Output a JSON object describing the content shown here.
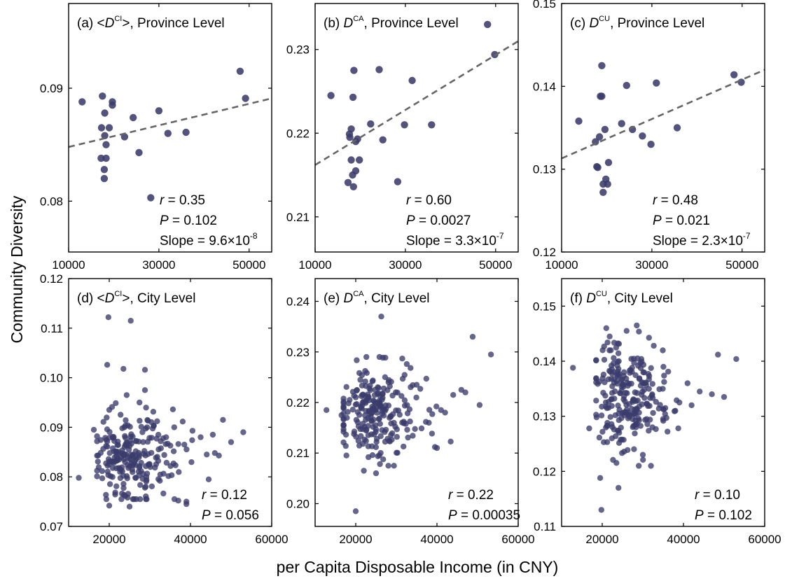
{
  "figure": {
    "ylabel": "Community Diversity",
    "xlabel": "per Capita Disposable Income (in CNY)"
  },
  "colors": {
    "point": "#3b3b6b",
    "fit": "#666666",
    "axis": "#000000"
  },
  "chart_data": [
    {
      "type": "scatter",
      "panel": "a",
      "title_prefix": "(a) <",
      "title_var": "D",
      "title_sup": "CI",
      "title_suffix": ">, Province Level",
      "xlim": [
        10000,
        55000
      ],
      "ylim": [
        0.0755,
        0.0975
      ],
      "xticks": [
        10000,
        30000,
        50000
      ],
      "xtick_labels": [
        "10000",
        "30000",
        "50000"
      ],
      "yticks": [
        0.08,
        0.09
      ],
      "ytick_labels": [
        "0.08",
        "0.09"
      ],
      "points": [
        [
          13000,
          0.0888
        ],
        [
          17500,
          0.0893
        ],
        [
          18000,
          0.0878
        ],
        [
          17300,
          0.0865
        ],
        [
          18000,
          0.0858
        ],
        [
          18300,
          0.085
        ],
        [
          19000,
          0.0865
        ],
        [
          19700,
          0.0888
        ],
        [
          19700,
          0.0885
        ],
        [
          22400,
          0.0857
        ],
        [
          24300,
          0.0874
        ],
        [
          25600,
          0.0843
        ],
        [
          17200,
          0.0838
        ],
        [
          17900,
          0.0828
        ],
        [
          17900,
          0.082
        ],
        [
          18300,
          0.0838
        ],
        [
          28200,
          0.0803
        ],
        [
          30000,
          0.088
        ],
        [
          32000,
          0.086
        ],
        [
          36000,
          0.0861
        ],
        [
          48000,
          0.0915
        ],
        [
          49200,
          0.0891
        ]
      ],
      "fit": [
        [
          10000,
          0.0848
        ],
        [
          55000,
          0.0891
        ]
      ],
      "stats": [
        {
          "label": "r",
          "value": " = 0.35"
        },
        {
          "label": "P",
          "value": " = 0.102"
        },
        {
          "label": "",
          "value": "Slope = 9.6×10",
          "sup": "-8"
        }
      ]
    },
    {
      "type": "scatter",
      "panel": "b",
      "title_prefix": "(b)  ",
      "title_var": "D",
      "title_sup": "CA",
      "title_suffix": ", Province Level",
      "xlim": [
        10000,
        55000
      ],
      "ylim": [
        0.2058,
        0.2355
      ],
      "xticks": [
        10000,
        30000,
        50000
      ],
      "xtick_labels": [
        "10000",
        "30000",
        "50000"
      ],
      "yticks": [
        0.21,
        0.22,
        0.23
      ],
      "ytick_labels": [
        "0.21",
        "0.22",
        "0.23"
      ],
      "points": [
        [
          13500,
          0.2245
        ],
        [
          17600,
          0.2199
        ],
        [
          17700,
          0.2195
        ],
        [
          18000,
          0.2205
        ],
        [
          18400,
          0.2243
        ],
        [
          18600,
          0.2275
        ],
        [
          19000,
          0.219
        ],
        [
          19400,
          0.2193
        ],
        [
          18000,
          0.2168
        ],
        [
          19000,
          0.2155
        ],
        [
          19800,
          0.2168
        ],
        [
          17300,
          0.2141
        ],
        [
          18300,
          0.215
        ],
        [
          18500,
          0.2136
        ],
        [
          22300,
          0.2211
        ],
        [
          24200,
          0.2276
        ],
        [
          25000,
          0.2192
        ],
        [
          28300,
          0.2142
        ],
        [
          29800,
          0.221
        ],
        [
          31500,
          0.2263
        ],
        [
          35800,
          0.221
        ],
        [
          48200,
          0.233
        ],
        [
          49800,
          0.2294
        ]
      ],
      "fit": [
        [
          10000,
          0.2162
        ],
        [
          55000,
          0.231
        ]
      ],
      "stats": [
        {
          "label": "r",
          "value": " = 0.60"
        },
        {
          "label": "P",
          "value": " = 0.0027"
        },
        {
          "label": "",
          "value": "Slope = 3.3×10",
          "sup": "-7"
        }
      ]
    },
    {
      "type": "scatter",
      "panel": "c",
      "title_prefix": "(c)  ",
      "title_var": "D",
      "title_sup": "CU",
      "title_suffix": ", Province Level",
      "xlim": [
        10000,
        55000
      ],
      "ylim": [
        0.12,
        0.15
      ],
      "xticks": [
        10000,
        30000,
        50000
      ],
      "xtick_labels": [
        "10000",
        "30000",
        "50000"
      ],
      "yticks": [
        0.12,
        0.13,
        0.14,
        0.15
      ],
      "ytick_labels": [
        "0.12",
        "0.13",
        "0.14",
        "0.15"
      ],
      "points": [
        [
          13800,
          0.1358
        ],
        [
          17500,
          0.1333
        ],
        [
          17800,
          0.1303
        ],
        [
          18000,
          0.1302
        ],
        [
          18400,
          0.1339
        ],
        [
          18600,
          0.1388
        ],
        [
          18900,
          0.1425
        ],
        [
          18900,
          0.1388
        ],
        [
          19200,
          0.1272
        ],
        [
          19200,
          0.1282
        ],
        [
          19600,
          0.1348
        ],
        [
          19800,
          0.1288
        ],
        [
          20200,
          0.1282
        ],
        [
          20400,
          0.1308
        ],
        [
          23300,
          0.1355
        ],
        [
          24400,
          0.1401
        ],
        [
          25700,
          0.1348
        ],
        [
          27900,
          0.134
        ],
        [
          29800,
          0.133
        ],
        [
          31000,
          0.1404
        ],
        [
          35600,
          0.135
        ],
        [
          48200,
          0.1414
        ],
        [
          49800,
          0.1405
        ]
      ],
      "fit": [
        [
          10000,
          0.1313
        ],
        [
          55000,
          0.142
        ]
      ],
      "stats": [
        {
          "label": "r",
          "value": " = 0.48"
        },
        {
          "label": "P",
          "value": " = 0.021"
        },
        {
          "label": "",
          "value": "Slope = 2.3×10",
          "sup": "-7"
        }
      ]
    },
    {
      "type": "scatter",
      "panel": "d",
      "title_prefix": "(d) <",
      "title_var": "D",
      "title_sup": "CI",
      "title_suffix": ">, City Level",
      "xlim": [
        10000,
        60000
      ],
      "ylim": [
        0.07,
        0.12
      ],
      "xticks": [
        20000,
        40000,
        60000
      ],
      "xtick_labels": [
        "20000",
        "40000",
        "60000"
      ],
      "yticks": [
        0.07,
        0.08,
        0.09,
        0.1,
        0.11,
        0.12
      ],
      "ytick_labels": [
        "0.07",
        "0.08",
        "0.09",
        "0.10",
        "0.11",
        "0.12"
      ],
      "outliers": [
        [
          12500,
          0.0798
        ],
        [
          19800,
          0.1122
        ],
        [
          25300,
          0.1115
        ],
        [
          19500,
          0.1026
        ],
        [
          23500,
          0.1018
        ],
        [
          28800,
          0.1016
        ],
        [
          28800,
          0.0975
        ],
        [
          24300,
          0.0965
        ],
        [
          16200,
          0.0895
        ],
        [
          20000,
          0.0935
        ],
        [
          37000,
          0.0752
        ],
        [
          39000,
          0.075
        ],
        [
          39000,
          0.0745
        ],
        [
          40500,
          0.0893
        ],
        [
          42500,
          0.088
        ],
        [
          45500,
          0.0885
        ],
        [
          48000,
          0.0915
        ],
        [
          50000,
          0.087
        ],
        [
          53000,
          0.089
        ],
        [
          44000,
          0.0845
        ],
        [
          46000,
          0.0848
        ],
        [
          47000,
          0.0843
        ],
        [
          20000,
          0.0742
        ],
        [
          25000,
          0.074
        ],
        [
          24500,
          0.0758
        ],
        [
          36000,
          0.09
        ],
        [
          34000,
          0.088
        ],
        [
          38500,
          0.0865
        ]
      ],
      "cluster": {
        "n": 230,
        "center": [
          25000,
          0.0842
        ],
        "spread": [
          4500,
          0.0045
        ],
        "skew": 0.9,
        "xrange": [
          17000,
          46000
        ],
        "yrange": [
          0.0755,
          0.095
        ],
        "seed": 11
      },
      "stats": [
        {
          "label": "r",
          "value": " = 0.12"
        },
        {
          "label": "P",
          "value": " = 0.056"
        }
      ]
    },
    {
      "type": "scatter",
      "panel": "e",
      "title_prefix": "(e)  ",
      "title_var": "D",
      "title_sup": "CA",
      "title_suffix": ", City Level",
      "xlim": [
        10000,
        60000
      ],
      "ylim": [
        0.1955,
        0.2445
      ],
      "xticks": [
        20000,
        40000,
        60000
      ],
      "xtick_labels": [
        "20000",
        "40000",
        "60000"
      ],
      "yticks": [
        0.2,
        0.21,
        0.22,
        0.23,
        0.24
      ],
      "ytick_labels": [
        "0.20",
        "0.21",
        "0.22",
        "0.23",
        "0.24"
      ],
      "outliers": [
        [
          12800,
          0.2185
        ],
        [
          16500,
          0.2175
        ],
        [
          26300,
          0.237
        ],
        [
          20000,
          0.1985
        ],
        [
          48800,
          0.233
        ],
        [
          53300,
          0.2295
        ],
        [
          46000,
          0.2225
        ],
        [
          47000,
          0.222
        ],
        [
          50500,
          0.2195
        ],
        [
          44000,
          0.2215
        ],
        [
          41000,
          0.2185
        ],
        [
          39500,
          0.2112
        ],
        [
          40000,
          0.211
        ],
        [
          38000,
          0.216
        ],
        [
          35000,
          0.2235
        ],
        [
          22000,
          0.2065
        ],
        [
          25000,
          0.206
        ],
        [
          42000,
          0.218
        ]
      ],
      "cluster": {
        "n": 230,
        "center": [
          24500,
          0.218
        ],
        "spread": [
          4000,
          0.0045
        ],
        "skew": 0.8,
        "xrange": [
          17000,
          45000
        ],
        "yrange": [
          0.2075,
          0.229
        ],
        "seed": 23
      },
      "stats": [
        {
          "label": "r",
          "value": " = 0.22"
        },
        {
          "label": "P",
          "value": " = 0.00035"
        }
      ]
    },
    {
      "type": "scatter",
      "panel": "f",
      "title_prefix": "(f)  ",
      "title_var": "D",
      "title_sup": "CU",
      "title_suffix": ", City Level",
      "xlim": [
        10000,
        60000
      ],
      "ylim": [
        0.11,
        0.155
      ],
      "xticks": [
        20000,
        40000,
        60000
      ],
      "xtick_labels": [
        "20000",
        "40000",
        "60000"
      ],
      "yticks": [
        0.11,
        0.12,
        0.13,
        0.14,
        0.15
      ],
      "ytick_labels": [
        "0.11",
        "0.12",
        "0.13",
        "0.14",
        "0.15"
      ],
      "outliers": [
        [
          12800,
          0.1388
        ],
        [
          16800,
          0.1278
        ],
        [
          19500,
          0.1188
        ],
        [
          19800,
          0.113
        ],
        [
          24000,
          0.117
        ],
        [
          48500,
          0.1412
        ],
        [
          53000,
          0.1404
        ],
        [
          50000,
          0.1335
        ],
        [
          47000,
          0.134
        ],
        [
          44000,
          0.1345
        ],
        [
          41000,
          0.136
        ],
        [
          39000,
          0.1325
        ],
        [
          38000,
          0.131
        ],
        [
          42000,
          0.132
        ],
        [
          21000,
          0.146
        ],
        [
          28500,
          0.1465
        ],
        [
          26000,
          0.1455
        ],
        [
          32000,
          0.121
        ],
        [
          29000,
          0.121
        ],
        [
          30000,
          0.123
        ]
      ],
      "cluster": {
        "n": 240,
        "center": [
          25500,
          0.134
        ],
        "spread": [
          3800,
          0.005
        ],
        "skew": 0.7,
        "xrange": [
          18500,
          45000
        ],
        "yrange": [
          0.1215,
          0.1462
        ],
        "seed": 37
      },
      "stats": [
        {
          "label": "r",
          "value": " = 0.10"
        },
        {
          "label": "P",
          "value": " = 0.102"
        }
      ]
    }
  ]
}
